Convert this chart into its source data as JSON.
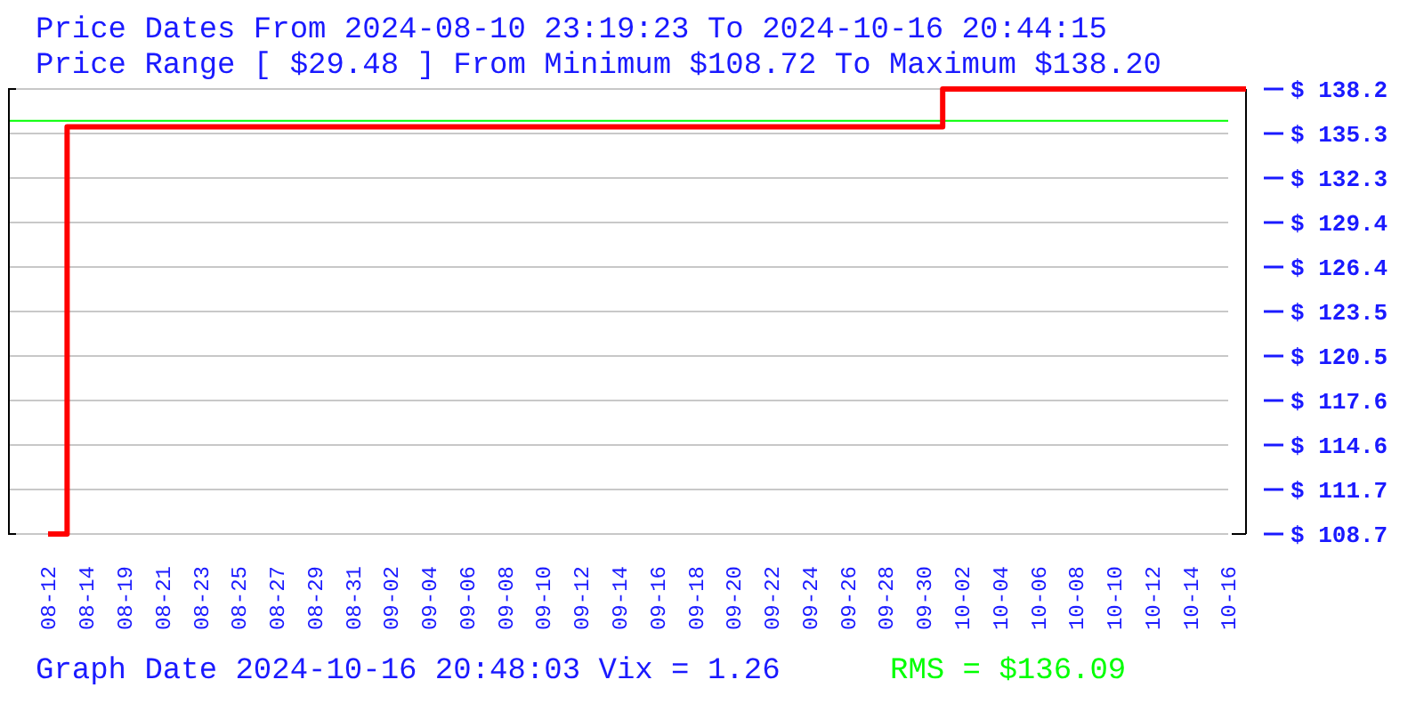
{
  "chart_data": {
    "type": "step",
    "title": "Price Dates From 2024-08-10 23:19:23 To 2024-10-16 20:44:15",
    "subtitle": "Price Range [ $29.48 ] From Minimum $108.72 To Maximum $138.20",
    "annotations": [
      "Graph Date 2024-10-16 20:48:03 Vix = 1.26"
    ],
    "categories": [
      "08-12",
      "08-14",
      "08-19",
      "08-21",
      "08-23",
      "08-25",
      "08-27",
      "08-29",
      "08-31",
      "09-02",
      "09-04",
      "09-06",
      "09-08",
      "09-10",
      "09-12",
      "09-14",
      "09-16",
      "09-18",
      "09-20",
      "09-22",
      "09-24",
      "09-26",
      "09-28",
      "09-30",
      "10-02",
      "10-04",
      "10-06",
      "10-08",
      "10-10",
      "10-12",
      "10-14",
      "10-16"
    ],
    "series": [
      {
        "color": "#ff0000",
        "values": [
          108.72,
          135.7,
          135.7,
          135.7,
          135.7,
          135.7,
          135.7,
          135.7,
          135.7,
          135.7,
          135.7,
          135.7,
          135.7,
          135.7,
          135.7,
          135.7,
          135.7,
          135.7,
          135.7,
          135.7,
          135.7,
          135.7,
          135.7,
          135.7,
          138.2,
          138.2,
          138.2,
          138.2,
          138.2,
          138.2,
          138.2,
          138.2
        ]
      }
    ],
    "ref_lines": [
      {
        "axis": "y",
        "value": 136.09,
        "label": "RMS = $136.09",
        "color": "#00ff00"
      }
    ],
    "ylim": [
      108.72,
      138.2
    ],
    "yticks": [
      {
        "value": 108.72,
        "label": "$ 108.7"
      },
      {
        "value": 111.668,
        "label": "$ 111.7"
      },
      {
        "value": 114.616,
        "label": "$ 114.6"
      },
      {
        "value": 117.564,
        "label": "$ 117.6"
      },
      {
        "value": 120.512,
        "label": "$ 120.5"
      },
      {
        "value": 123.46,
        "label": "$ 123.5"
      },
      {
        "value": 126.408,
        "label": "$ 126.4"
      },
      {
        "value": 129.356,
        "label": "$ 129.4"
      },
      {
        "value": 132.304,
        "label": "$ 132.3"
      },
      {
        "value": 135.252,
        "label": "$ 135.3"
      },
      {
        "value": 138.2,
        "label": "$ 138.2"
      }
    ],
    "grid": "y"
  }
}
